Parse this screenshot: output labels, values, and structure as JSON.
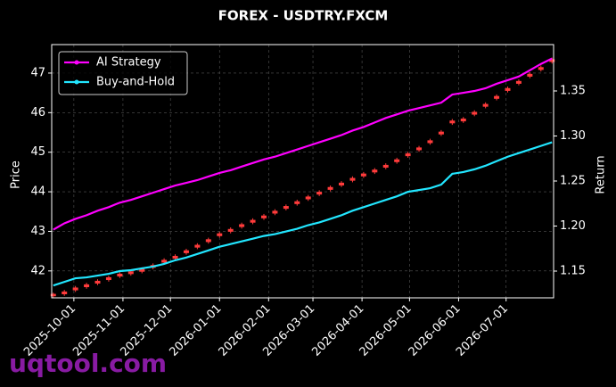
{
  "chart_data": {
    "type": "candlestick",
    "title": "FOREX - USDTRY.FXCM",
    "ylabel": "Price",
    "y2label": "Return",
    "watermark": "uqtool.com",
    "x": [
      "2025-09-18",
      "2025-09-25",
      "2025-10-02",
      "2025-10-09",
      "2025-10-16",
      "2025-10-23",
      "2025-10-30",
      "2025-11-06",
      "2025-11-13",
      "2025-11-20",
      "2025-11-27",
      "2025-12-04",
      "2025-12-11",
      "2025-12-18",
      "2025-12-25",
      "2026-01-01",
      "2026-01-08",
      "2026-01-15",
      "2026-01-22",
      "2026-01-29",
      "2026-02-05",
      "2026-02-12",
      "2026-02-19",
      "2026-02-26",
      "2026-03-05",
      "2026-03-12",
      "2026-03-19",
      "2026-03-26",
      "2026-04-02",
      "2026-04-09",
      "2026-04-16",
      "2026-04-23",
      "2026-04-30",
      "2026-05-07",
      "2026-05-14",
      "2026-05-21",
      "2026-05-28",
      "2026-06-04",
      "2026-06-11",
      "2026-06-18",
      "2026-06-25",
      "2026-07-02",
      "2026-07-09",
      "2026-07-16",
      "2026-07-23",
      "2026-07-30"
    ],
    "candles": {
      "open": [
        41.36,
        41.41,
        41.51,
        41.59,
        41.68,
        41.77,
        41.86,
        41.92,
        41.98,
        42.08,
        42.21,
        42.31,
        42.45,
        42.59,
        42.73,
        42.88,
        42.99,
        43.11,
        43.22,
        43.33,
        43.45,
        43.57,
        43.69,
        43.81,
        43.93,
        44.05,
        44.16,
        44.28,
        44.39,
        44.49,
        44.61,
        44.75,
        44.9,
        45.05,
        45.23,
        45.45,
        45.73,
        45.78,
        45.95,
        46.15,
        46.35,
        46.55,
        46.73,
        46.91,
        47.08,
        47.28
      ],
      "high": [
        41.45,
        41.52,
        41.62,
        41.7,
        41.79,
        41.88,
        41.97,
        42.03,
        42.09,
        42.19,
        42.32,
        42.42,
        42.56,
        42.7,
        42.84,
        42.99,
        43.1,
        43.22,
        43.33,
        43.44,
        43.56,
        43.68,
        43.8,
        43.92,
        44.04,
        44.16,
        44.27,
        44.39,
        44.5,
        44.6,
        44.72,
        44.86,
        45.01,
        45.16,
        45.34,
        45.56,
        45.84,
        45.89,
        46.06,
        46.26,
        46.46,
        46.66,
        46.84,
        47.02,
        47.19,
        47.39
      ],
      "low": [
        41.33,
        41.37,
        41.47,
        41.55,
        41.64,
        41.73,
        41.82,
        41.88,
        41.94,
        42.04,
        42.17,
        42.27,
        42.41,
        42.55,
        42.69,
        42.84,
        42.95,
        43.07,
        43.18,
        43.29,
        43.41,
        43.53,
        43.65,
        43.77,
        43.89,
        44.01,
        44.12,
        44.24,
        44.35,
        44.45,
        44.57,
        44.71,
        44.86,
        45.01,
        45.19,
        45.41,
        45.69,
        45.74,
        45.91,
        46.11,
        46.31,
        46.51,
        46.69,
        46.87,
        47.04,
        47.24
      ],
      "close": [
        41.42,
        41.48,
        41.58,
        41.66,
        41.75,
        41.84,
        41.93,
        41.99,
        42.05,
        42.15,
        42.28,
        42.38,
        42.52,
        42.66,
        42.8,
        42.95,
        43.06,
        43.18,
        43.29,
        43.4,
        43.52,
        43.64,
        43.76,
        43.88,
        44.0,
        44.12,
        44.23,
        44.35,
        44.46,
        44.56,
        44.68,
        44.82,
        44.97,
        45.12,
        45.3,
        45.52,
        45.8,
        45.85,
        46.02,
        46.22,
        46.42,
        46.62,
        46.8,
        46.98,
        47.15,
        47.35
      ],
      "up_color": "#ff3b3b",
      "down_color": "#7cfc00"
    },
    "series": [
      {
        "name": "AI Strategy",
        "color": "#ff00ff",
        "axis": "y2",
        "values": [
          1.196,
          1.203,
          1.208,
          1.212,
          1.217,
          1.221,
          1.226,
          1.229,
          1.233,
          1.237,
          1.241,
          1.245,
          1.248,
          1.251,
          1.255,
          1.259,
          1.262,
          1.266,
          1.27,
          1.274,
          1.277,
          1.281,
          1.285,
          1.289,
          1.293,
          1.297,
          1.301,
          1.306,
          1.31,
          1.315,
          1.32,
          1.324,
          1.328,
          1.331,
          1.334,
          1.337,
          1.346,
          1.348,
          1.35,
          1.353,
          1.358,
          1.362,
          1.366,
          1.373,
          1.38,
          1.386
        ]
      },
      {
        "name": "Buy-and-Hold",
        "color": "#22e6ff",
        "axis": "y2",
        "values": [
          1.134,
          1.138,
          1.142,
          1.143,
          1.145,
          1.147,
          1.15,
          1.151,
          1.153,
          1.155,
          1.158,
          1.162,
          1.165,
          1.169,
          1.173,
          1.177,
          1.18,
          1.183,
          1.186,
          1.189,
          1.191,
          1.194,
          1.197,
          1.201,
          1.204,
          1.208,
          1.212,
          1.217,
          1.221,
          1.225,
          1.229,
          1.233,
          1.238,
          1.24,
          1.242,
          1.246,
          1.258,
          1.26,
          1.263,
          1.267,
          1.272,
          1.277,
          1.281,
          1.285,
          1.289,
          1.293
        ]
      }
    ],
    "xlim": [
      "2025-09-17",
      "2026-07-31"
    ],
    "xticks": [
      "2025-10-01",
      "2025-11-01",
      "2025-12-01",
      "2026-01-01",
      "2026-02-01",
      "2026-03-01",
      "2026-04-01",
      "2026-05-01",
      "2026-06-01",
      "2026-07-01"
    ],
    "ylim": [
      41.32,
      47.72
    ],
    "yticks": [
      42,
      43,
      44,
      45,
      46,
      47
    ],
    "y2lim": [
      1.1203,
      1.4015
    ],
    "y2ticks": [
      1.15,
      {
        "value": 1.2,
        "label": "1.20"
      },
      1.25,
      {
        "value": 1.3,
        "label": "1.30"
      },
      1.35
    ],
    "grid": true,
    "legend": "upper-left"
  }
}
